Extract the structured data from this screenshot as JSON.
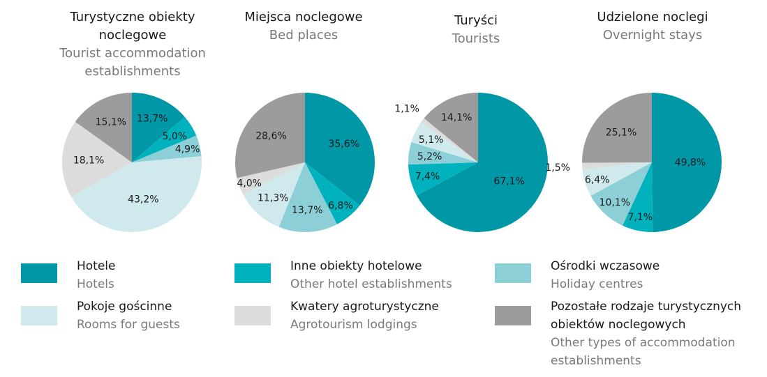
{
  "colors": {
    "hotels": "#0097a7",
    "other_hotel": "#00b2bd",
    "holiday": "#8ccfd6",
    "rooms": "#cfe9ec",
    "agro": "#dcdcdc",
    "other": "#9c9c9c"
  },
  "legend": [
    {
      "key": "hotels",
      "pl": "Hotele",
      "en": "Hotels"
    },
    {
      "key": "other_hotel",
      "pl": "Inne obiekty hotelowe",
      "en": "Other hotel establishments"
    },
    {
      "key": "holiday",
      "pl": "Ośrodki wczasowe",
      "en": "Holiday centres"
    },
    {
      "key": "rooms",
      "pl": "Pokoje gościnne",
      "en": "Rooms for guests"
    },
    {
      "key": "agro",
      "pl": "Kwatery agroturystyczne",
      "en": "Agrotourism lodgings"
    },
    {
      "key": "other",
      "pl": "Pozostałe rodzaje turystycznych obiektów noclegowych",
      "en": "Other types of accommodation establishments"
    }
  ],
  "chart_data": [
    {
      "type": "pie",
      "title": "Turystyczne obiekty noclegowe",
      "subtitle": "Tourist accommodation establishments",
      "slices": [
        {
          "key": "hotels",
          "value": 13.7,
          "label": "13,7%"
        },
        {
          "key": "other_hotel",
          "value": 5.0,
          "label": "5,0%"
        },
        {
          "key": "holiday",
          "value": 4.9,
          "label": "4,9%"
        },
        {
          "key": "rooms",
          "value": 43.2,
          "label": "43,2%"
        },
        {
          "key": "agro",
          "value": 18.1,
          "label": "18,1%"
        },
        {
          "key": "other",
          "value": 15.1,
          "label": "15,1%"
        }
      ]
    },
    {
      "type": "pie",
      "title": "Miejsca noclegowe",
      "subtitle": "Bed places",
      "slices": [
        {
          "key": "hotels",
          "value": 35.6,
          "label": "35,6%"
        },
        {
          "key": "other_hotel",
          "value": 6.8,
          "label": "6,8%"
        },
        {
          "key": "holiday",
          "value": 13.7,
          "label": "13,7%"
        },
        {
          "key": "rooms",
          "value": 11.3,
          "label": "11,3%"
        },
        {
          "key": "agro",
          "value": 4.0,
          "label": "4,0%"
        },
        {
          "key": "other",
          "value": 28.6,
          "label": "28,6%"
        }
      ]
    },
    {
      "type": "pie",
      "title": "Turyści",
      "subtitle": "Tourists",
      "slices": [
        {
          "key": "hotels",
          "value": 67.1,
          "label": "67,1%"
        },
        {
          "key": "other_hotel",
          "value": 7.4,
          "label": "7,4%"
        },
        {
          "key": "holiday",
          "value": 5.2,
          "label": "5,2%"
        },
        {
          "key": "rooms",
          "value": 5.1,
          "label": "5,1%"
        },
        {
          "key": "agro",
          "value": 1.1,
          "label": "1,1%"
        },
        {
          "key": "other",
          "value": 14.1,
          "label": "14,1%"
        }
      ]
    },
    {
      "type": "pie",
      "title": "Udzielone noclegi",
      "subtitle": "Overnight stays",
      "slices": [
        {
          "key": "hotels",
          "value": 49.8,
          "label": "49,8%"
        },
        {
          "key": "other_hotel",
          "value": 7.1,
          "label": "7,1%"
        },
        {
          "key": "holiday",
          "value": 10.1,
          "label": "10,1%"
        },
        {
          "key": "rooms",
          "value": 6.4,
          "label": "6,4%"
        },
        {
          "key": "agro",
          "value": 1.5,
          "label": "1,5%"
        },
        {
          "key": "other",
          "value": 25.1,
          "label": "25,1%"
        }
      ]
    }
  ]
}
